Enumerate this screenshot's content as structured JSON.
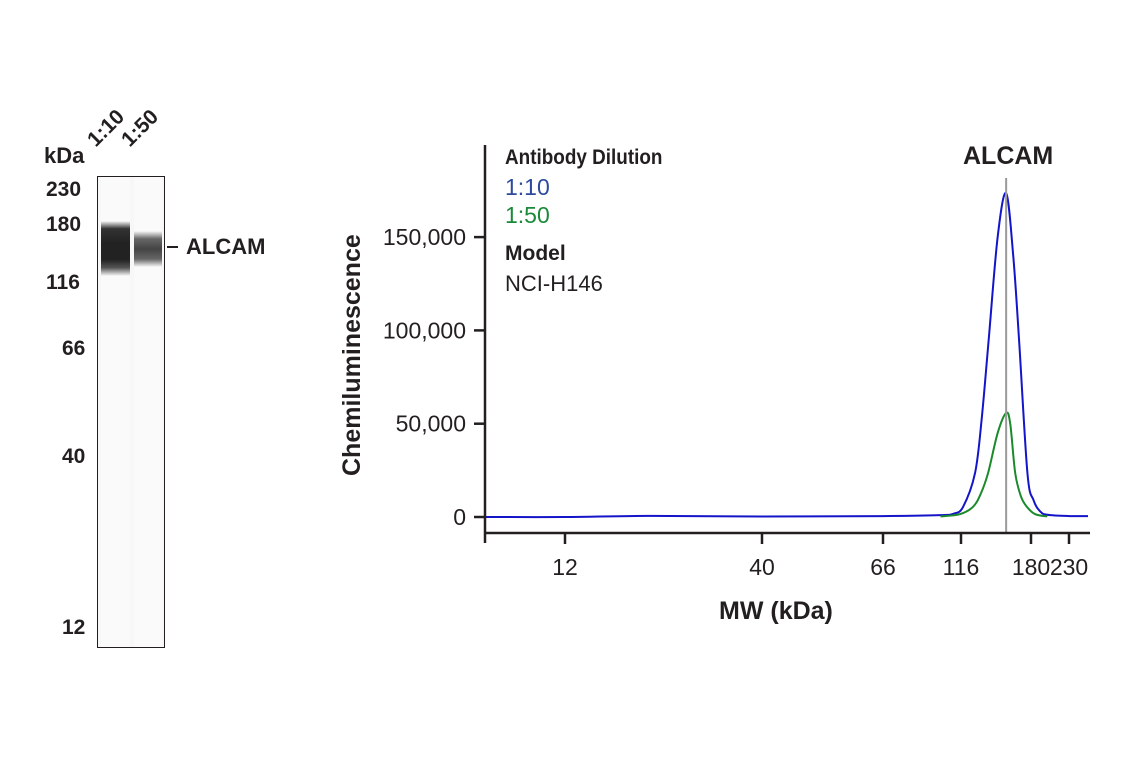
{
  "blot": {
    "unit_label": "kDa",
    "lanes": [
      "1:10",
      "1:50"
    ],
    "markers": [
      "230",
      "180",
      "116",
      "66",
      "40",
      "12"
    ],
    "band_label": "ALCAM",
    "band_intensity": [
      1.0,
      0.7
    ]
  },
  "chart_data": {
    "type": "line",
    "title": "ALCAM",
    "xlabel": "MW (kDa)",
    "ylabel": "Chemiluminescence",
    "x_scale": "log",
    "x_ticks": [
      12,
      40,
      66,
      116,
      180,
      230
    ],
    "x_tick_labels": [
      "12",
      "40",
      "66",
      "116",
      "180",
      "230"
    ],
    "y_ticks": [
      0,
      50000,
      100000,
      150000
    ],
    "y_tick_labels": [
      "0",
      "50,000",
      "100,000",
      "150,000"
    ],
    "ylim": [
      -8000,
      200000
    ],
    "xlim": [
      7.4,
      260
    ],
    "grid": false,
    "legend": {
      "title": "Antibody Dilution",
      "placement": "top-left",
      "model_title": "Model",
      "model_value": "NCI-H146"
    },
    "reference_line_mw": 154,
    "series": [
      {
        "name": "1:10",
        "color": "#1414c8",
        "label_color": "#2e4a9e",
        "x": [
          7.4,
          12,
          20,
          40,
          66,
          100,
          110,
          117.5,
          126.7,
          132,
          138,
          146,
          154,
          161,
          167,
          176,
          183,
          191,
          200,
          230,
          260
        ],
        "y": [
          0,
          0,
          600,
          300,
          500,
          1000,
          1800,
          5400,
          23600,
          52000,
          94900,
          150000,
          173500,
          140000,
          94900,
          23600,
          9000,
          3000,
          1200,
          500,
          500
        ]
      },
      {
        "name": "1:50",
        "color": "#1a8a2a",
        "label_color": "#1a8a3a",
        "x": [
          100,
          115,
          125,
          131,
          137.5,
          146,
          154,
          158,
          163,
          169,
          175.5,
          185,
          200
        ],
        "y": [
          300,
          1500,
          5400,
          12000,
          23600,
          45000,
          55700,
          50000,
          23600,
          11000,
          5400,
          1500,
          300
        ]
      }
    ]
  }
}
